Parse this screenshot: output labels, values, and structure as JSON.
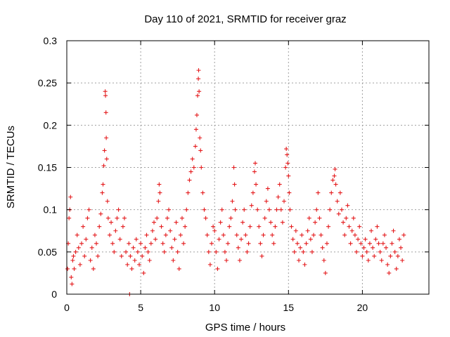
{
  "chart_data": {
    "type": "scatter",
    "title": "Day 110 of 2021, SRMTID for receiver graz",
    "xlabel": "GPS time / hours",
    "ylabel": "SRMTID / TECUs",
    "xlim": [
      0,
      24.5
    ],
    "ylim": [
      0,
      0.3
    ],
    "xticks": [
      0,
      5,
      10,
      15,
      20
    ],
    "xtick_labels": [
      "0",
      "5",
      "10",
      "15",
      "20"
    ],
    "yticks": [
      0,
      0.05,
      0.1,
      0.15,
      0.2,
      0.25,
      0.3
    ],
    "ytick_labels": [
      "0",
      "0.05",
      "0.1",
      "0.15",
      "0.2",
      "0.25",
      "0.3"
    ],
    "grid": true,
    "marker": "plus",
    "colors": {
      "series": "#e41a1c",
      "grid": "#a0a0a0",
      "axis": "#000000"
    },
    "series": [
      {
        "name": "SRMTID",
        "points": [
          [
            0.05,
            0.03
          ],
          [
            0.1,
            0.06
          ],
          [
            0.15,
            0.09
          ],
          [
            0.2,
            0.1
          ],
          [
            0.25,
            0.115
          ],
          [
            0.3,
            0.02
          ],
          [
            0.35,
            0.012
          ],
          [
            0.4,
            0.04
          ],
          [
            0.45,
            0.045
          ],
          [
            0.5,
            0.03
          ],
          [
            0.6,
            0.05
          ],
          [
            0.7,
            0.07
          ],
          [
            0.8,
            0.055
          ],
          [
            0.9,
            0.035
          ],
          [
            1.0,
            0.06
          ],
          [
            1.1,
            0.08
          ],
          [
            1.2,
            0.045
          ],
          [
            1.3,
            0.065
          ],
          [
            1.4,
            0.09
          ],
          [
            1.5,
            0.1
          ],
          [
            1.6,
            0.04
          ],
          [
            1.7,
            0.055
          ],
          [
            1.8,
            0.03
          ],
          [
            1.9,
            0.07
          ],
          [
            2.0,
            0.06
          ],
          [
            2.1,
            0.045
          ],
          [
            2.2,
            0.08
          ],
          [
            2.3,
            0.095
          ],
          [
            2.4,
            0.12
          ],
          [
            2.45,
            0.13
          ],
          [
            2.5,
            0.152
          ],
          [
            2.55,
            0.17
          ],
          [
            2.6,
            0.24
          ],
          [
            2.62,
            0.235
          ],
          [
            2.65,
            0.215
          ],
          [
            2.67,
            0.185
          ],
          [
            2.7,
            0.16
          ],
          [
            2.75,
            0.11
          ],
          [
            2.8,
            0.09
          ],
          [
            2.9,
            0.07
          ],
          [
            3.0,
            0.085
          ],
          [
            3.1,
            0.06
          ],
          [
            3.2,
            0.05
          ],
          [
            3.3,
            0.075
          ],
          [
            3.4,
            0.09
          ],
          [
            3.5,
            0.1
          ],
          [
            3.6,
            0.065
          ],
          [
            3.7,
            0.045
          ],
          [
            3.8,
            0.08
          ],
          [
            3.9,
            0.09
          ],
          [
            4.0,
            0.05
          ],
          [
            4.1,
            0.035
          ],
          [
            4.2,
            0.06
          ],
          [
            4.25,
            0.0
          ],
          [
            4.3,
            0.045
          ],
          [
            4.4,
            0.03
          ],
          [
            4.5,
            0.055
          ],
          [
            4.6,
            0.04
          ],
          [
            4.7,
            0.065
          ],
          [
            4.8,
            0.05
          ],
          [
            4.9,
            0.035
          ],
          [
            5.0,
            0.06
          ],
          [
            5.1,
            0.045
          ],
          [
            5.2,
            0.025
          ],
          [
            5.3,
            0.055
          ],
          [
            5.4,
            0.07
          ],
          [
            5.5,
            0.05
          ],
          [
            5.6,
            0.04
          ],
          [
            5.7,
            0.06
          ],
          [
            5.8,
            0.075
          ],
          [
            5.9,
            0.085
          ],
          [
            6.0,
            0.065
          ],
          [
            6.1,
            0.09
          ],
          [
            6.2,
            0.11
          ],
          [
            6.25,
            0.13
          ],
          [
            6.3,
            0.12
          ],
          [
            6.4,
            0.08
          ],
          [
            6.5,
            0.06
          ],
          [
            6.6,
            0.05
          ],
          [
            6.7,
            0.07
          ],
          [
            6.8,
            0.09
          ],
          [
            6.9,
            0.1
          ],
          [
            7.0,
            0.075
          ],
          [
            7.1,
            0.055
          ],
          [
            7.2,
            0.04
          ],
          [
            7.3,
            0.065
          ],
          [
            7.4,
            0.085
          ],
          [
            7.5,
            0.05
          ],
          [
            7.6,
            0.03
          ],
          [
            7.7,
            0.07
          ],
          [
            7.8,
            0.09
          ],
          [
            7.9,
            0.06
          ],
          [
            8.0,
            0.08
          ],
          [
            8.1,
            0.1
          ],
          [
            8.2,
            0.12
          ],
          [
            8.3,
            0.135
          ],
          [
            8.4,
            0.145
          ],
          [
            8.5,
            0.16
          ],
          [
            8.6,
            0.15
          ],
          [
            8.7,
            0.175
          ],
          [
            8.75,
            0.195
          ],
          [
            8.8,
            0.212
          ],
          [
            8.85,
            0.235
          ],
          [
            8.9,
            0.255
          ],
          [
            8.92,
            0.265
          ],
          [
            8.95,
            0.24
          ],
          [
            9.0,
            0.185
          ],
          [
            9.05,
            0.17
          ],
          [
            9.1,
            0.15
          ],
          [
            9.2,
            0.12
          ],
          [
            9.3,
            0.1
          ],
          [
            9.4,
            0.09
          ],
          [
            9.5,
            0.07
          ],
          [
            9.6,
            0.05
          ],
          [
            9.7,
            0.035
          ],
          [
            9.8,
            0.06
          ],
          [
            9.9,
            0.08
          ],
          [
            10.0,
            0.075
          ],
          [
            10.1,
            0.05
          ],
          [
            10.2,
            0.03
          ],
          [
            10.3,
            0.065
          ],
          [
            10.4,
            0.085
          ],
          [
            10.5,
            0.1
          ],
          [
            10.6,
            0.07
          ],
          [
            10.7,
            0.05
          ],
          [
            10.8,
            0.04
          ],
          [
            10.9,
            0.06
          ],
          [
            11.0,
            0.08
          ],
          [
            11.1,
            0.09
          ],
          [
            11.2,
            0.11
          ],
          [
            11.3,
            0.15
          ],
          [
            11.35,
            0.13
          ],
          [
            11.4,
            0.1
          ],
          [
            11.5,
            0.07
          ],
          [
            11.6,
            0.055
          ],
          [
            11.7,
            0.04
          ],
          [
            11.8,
            0.065
          ],
          [
            11.9,
            0.085
          ],
          [
            12.0,
            0.1
          ],
          [
            12.1,
            0.07
          ],
          [
            12.2,
            0.05
          ],
          [
            12.3,
            0.06
          ],
          [
            12.4,
            0.08
          ],
          [
            12.5,
            0.105
          ],
          [
            12.6,
            0.12
          ],
          [
            12.7,
            0.145
          ],
          [
            12.75,
            0.155
          ],
          [
            12.8,
            0.13
          ],
          [
            12.9,
            0.1
          ],
          [
            13.0,
            0.08
          ],
          [
            13.1,
            0.06
          ],
          [
            13.2,
            0.045
          ],
          [
            13.3,
            0.07
          ],
          [
            13.4,
            0.09
          ],
          [
            13.5,
            0.11
          ],
          [
            13.6,
            0.125
          ],
          [
            13.7,
            0.1
          ],
          [
            13.8,
            0.085
          ],
          [
            13.9,
            0.07
          ],
          [
            14.0,
            0.06
          ],
          [
            14.1,
            0.08
          ],
          [
            14.2,
            0.1
          ],
          [
            14.3,
            0.115
          ],
          [
            14.4,
            0.13
          ],
          [
            14.5,
            0.1
          ],
          [
            14.6,
            0.085
          ],
          [
            14.7,
            0.11
          ],
          [
            14.8,
            0.15
          ],
          [
            14.85,
            0.172
          ],
          [
            14.9,
            0.165
          ],
          [
            14.95,
            0.155
          ],
          [
            15.0,
            0.14
          ],
          [
            15.05,
            0.12
          ],
          [
            15.1,
            0.1
          ],
          [
            15.2,
            0.08
          ],
          [
            15.3,
            0.065
          ],
          [
            15.4,
            0.05
          ],
          [
            15.5,
            0.075
          ],
          [
            15.6,
            0.06
          ],
          [
            15.7,
            0.04
          ],
          [
            15.8,
            0.055
          ],
          [
            15.9,
            0.07
          ],
          [
            16.0,
            0.05
          ],
          [
            16.1,
            0.035
          ],
          [
            16.2,
            0.06
          ],
          [
            16.3,
            0.075
          ],
          [
            16.4,
            0.09
          ],
          [
            16.5,
            0.065
          ],
          [
            16.6,
            0.05
          ],
          [
            16.7,
            0.07
          ],
          [
            16.8,
            0.085
          ],
          [
            16.9,
            0.1
          ],
          [
            17.0,
            0.12
          ],
          [
            17.1,
            0.09
          ],
          [
            17.2,
            0.07
          ],
          [
            17.3,
            0.055
          ],
          [
            17.4,
            0.04
          ],
          [
            17.5,
            0.025
          ],
          [
            17.6,
            0.06
          ],
          [
            17.7,
            0.08
          ],
          [
            17.8,
            0.1
          ],
          [
            17.9,
            0.12
          ],
          [
            18.0,
            0.135
          ],
          [
            18.1,
            0.14
          ],
          [
            18.15,
            0.148
          ],
          [
            18.2,
            0.13
          ],
          [
            18.3,
            0.11
          ],
          [
            18.4,
            0.095
          ],
          [
            18.5,
            0.12
          ],
          [
            18.6,
            0.1
          ],
          [
            18.7,
            0.085
          ],
          [
            18.8,
            0.07
          ],
          [
            18.9,
            0.09
          ],
          [
            19.0,
            0.105
          ],
          [
            19.1,
            0.08
          ],
          [
            19.2,
            0.06
          ],
          [
            19.3,
            0.075
          ],
          [
            19.4,
            0.09
          ],
          [
            19.5,
            0.07
          ],
          [
            19.6,
            0.05
          ],
          [
            19.7,
            0.065
          ],
          [
            19.8,
            0.08
          ],
          [
            19.9,
            0.06
          ],
          [
            20.0,
            0.045
          ],
          [
            20.1,
            0.055
          ],
          [
            20.2,
            0.065
          ],
          [
            20.3,
            0.05
          ],
          [
            20.4,
            0.04
          ],
          [
            20.5,
            0.06
          ],
          [
            20.6,
            0.075
          ],
          [
            20.7,
            0.055
          ],
          [
            20.8,
            0.045
          ],
          [
            20.9,
            0.065
          ],
          [
            21.0,
            0.08
          ],
          [
            21.1,
            0.06
          ],
          [
            21.2,
            0.05
          ],
          [
            21.3,
            0.04
          ],
          [
            21.4,
            0.06
          ],
          [
            21.5,
            0.07
          ],
          [
            21.6,
            0.055
          ],
          [
            21.7,
            0.035
          ],
          [
            21.8,
            0.025
          ],
          [
            21.9,
            0.045
          ],
          [
            22.0,
            0.06
          ],
          [
            22.1,
            0.075
          ],
          [
            22.2,
            0.05
          ],
          [
            22.3,
            0.03
          ],
          [
            22.4,
            0.045
          ],
          [
            22.5,
            0.065
          ],
          [
            22.6,
            0.055
          ],
          [
            22.7,
            0.04
          ],
          [
            22.8,
            0.07
          ]
        ]
      }
    ]
  }
}
